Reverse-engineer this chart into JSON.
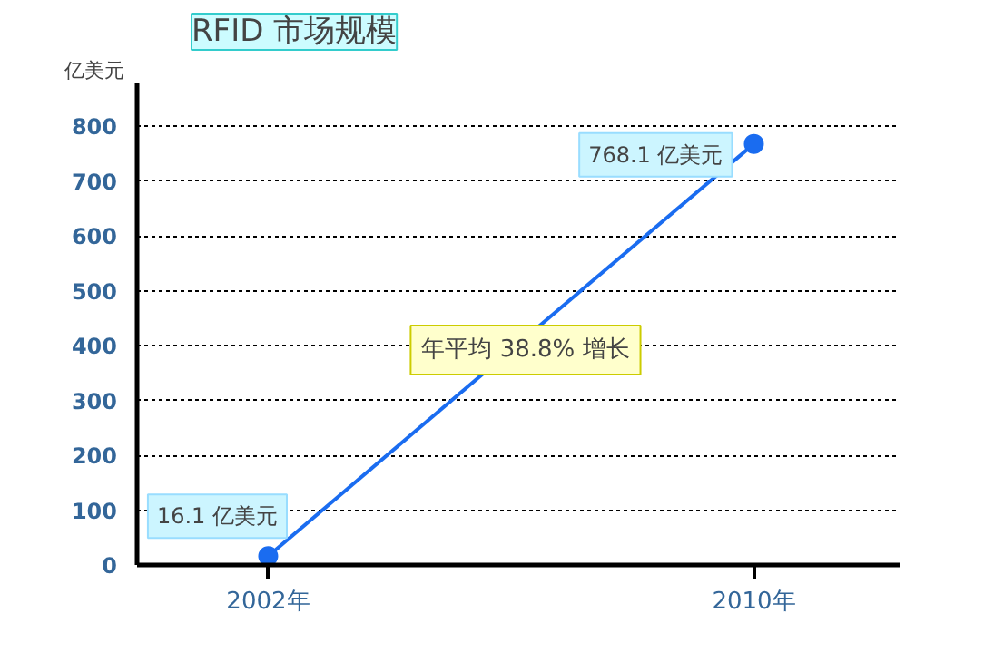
{
  "chart_data": {
    "type": "line",
    "title": "RFID 市场规模",
    "ylabel": "亿美元",
    "categories": [
      "2002年",
      "2010年"
    ],
    "series": [
      {
        "color": "#1a6cf0",
        "values": [
          16.1,
          768.1
        ],
        "value_labels": [
          "16.1 亿美元",
          "768.1 亿美元"
        ]
      }
    ],
    "annotations": [
      "年平均 38.8% 增长"
    ],
    "ylim": [
      0,
      880
    ],
    "yticks": [
      0,
      100,
      200,
      300,
      400,
      500,
      600,
      700,
      800
    ],
    "grid": "y",
    "marker": "circle",
    "line_style": "solid"
  }
}
